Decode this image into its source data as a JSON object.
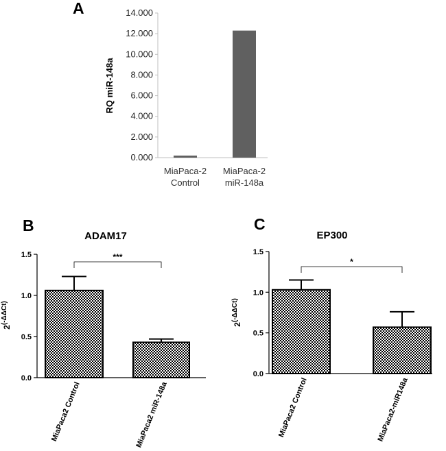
{
  "colors": {
    "barA": "#606060",
    "axis": "#000000",
    "axisA": "#bfbfbf"
  },
  "chart_data": [
    {
      "type": "bar",
      "panel": "A",
      "categories": [
        [
          "MiaPaca-2",
          "Control"
        ],
        [
          "MiaPaca-2",
          "miR-148a"
        ]
      ],
      "values": [
        0.2,
        12.3
      ],
      "ylabel": "RQ miR-148a",
      "ylim": [
        0,
        14
      ],
      "yticks": [
        "0.000",
        "2.000",
        "4.000",
        "6.000",
        "8.000",
        "10.000",
        "12.000",
        "14.000"
      ],
      "ytick_values": [
        0,
        2,
        4,
        6,
        8,
        10,
        12,
        14
      ]
    },
    {
      "type": "bar",
      "panel": "B",
      "title": "ADAM17",
      "categories": [
        "MiaPaca2 Control",
        "MiaPaca2 miR-148a"
      ],
      "values": [
        1.06,
        0.43
      ],
      "errors": [
        0.17,
        0.04
      ],
      "ylabel_base": "2",
      "ylabel_exp": "(-ΔΔCt)",
      "ylim": [
        0,
        1.5
      ],
      "yticks": [
        "0.0",
        "0.5",
        "1.0",
        "1.5"
      ],
      "ytick_values": [
        0,
        0.5,
        1.0,
        1.5
      ],
      "significance": "***"
    },
    {
      "type": "bar",
      "panel": "C",
      "title": "EP300",
      "categories": [
        "MiaPaca2 Control",
        "MiaPaca2-miR148a"
      ],
      "values": [
        1.03,
        0.57
      ],
      "errors": [
        0.12,
        0.19
      ],
      "ylabel_base": "2",
      "ylabel_exp": "(-ΔΔCt)",
      "ylim": [
        0,
        1.5
      ],
      "yticks": [
        "0.0",
        "0.5",
        "1.0",
        "1.5"
      ],
      "ytick_values": [
        0,
        0.5,
        1.0,
        1.5
      ],
      "significance": "*"
    }
  ]
}
